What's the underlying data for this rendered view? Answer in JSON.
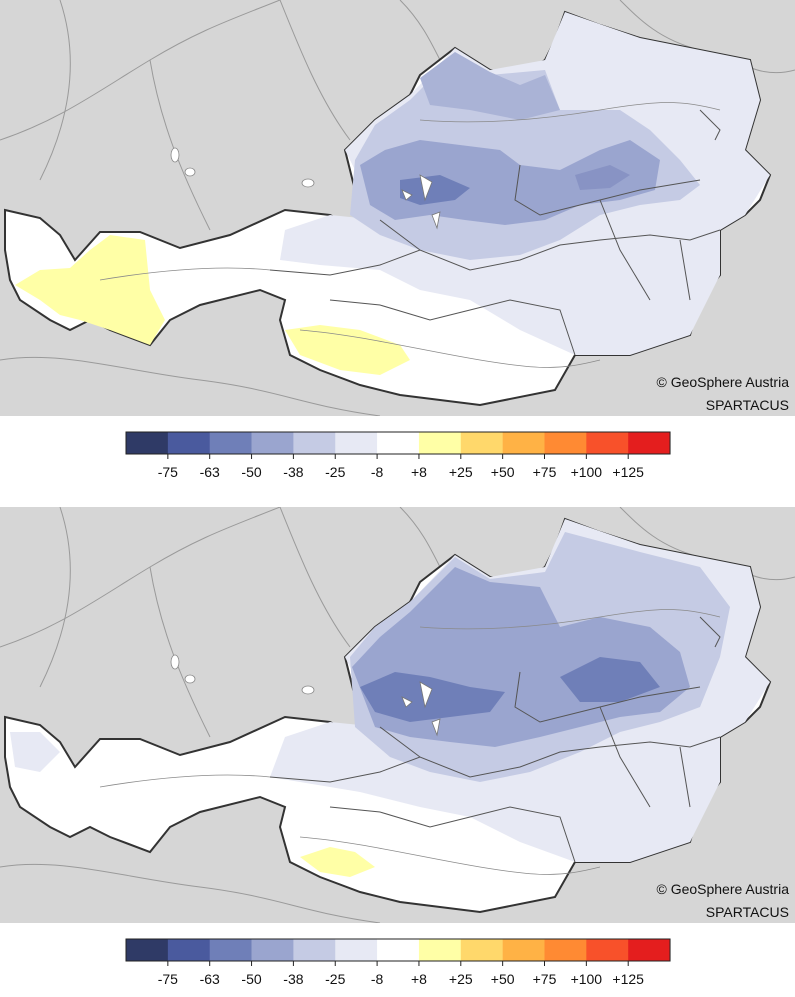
{
  "credit_line1": "© GeoSphere Austria",
  "credit_line2": "SPARTACUS",
  "legend": {
    "colors": [
      "#2f3a66",
      "#4a5a9e",
      "#6f7fb8",
      "#9aa5cf",
      "#c5cbe4",
      "#e7e9f4",
      "#ffffff",
      "#ffffa6",
      "#ffd86b",
      "#ffb245",
      "#ff8a33",
      "#f8512a",
      "#e41e1e"
    ],
    "labels": [
      "-75",
      "-63",
      "-50",
      "-38",
      "-25",
      "-8",
      "+8",
      "+25",
      "+50",
      "+75",
      "+100",
      "+125"
    ]
  },
  "maps": [
    {
      "name": "upper-map"
    },
    {
      "name": "lower-map"
    }
  ]
}
